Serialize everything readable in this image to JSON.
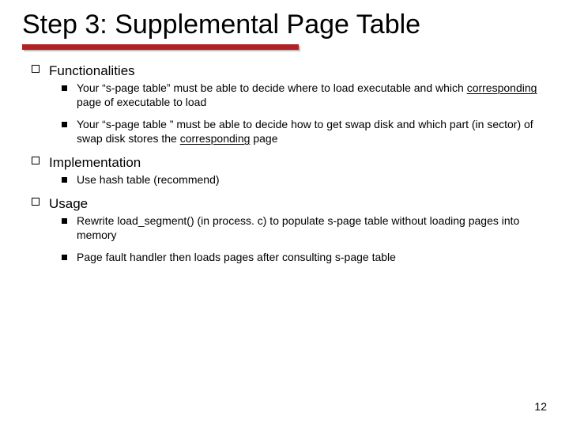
{
  "title": "Step 3: Supplemental Page Table",
  "rule": {
    "color": "#b22222",
    "shadow": "#c0c0c0"
  },
  "page_number": "12",
  "sections": [
    {
      "heading": "Functionalities",
      "items": [
        {
          "segments": [
            {
              "text": "Your “s-page table” must be able to decide where to load executable and which "
            },
            {
              "text": "corresponding",
              "style": "underline"
            },
            {
              "text": " page of executable to load"
            }
          ]
        },
        {
          "segments": [
            {
              "text": "Your “s-page table ” must be able to decide how to get swap disk and which part (in sector) of swap disk stores the "
            },
            {
              "text": "corresponding",
              "style": "underline"
            },
            {
              "text": " page"
            }
          ]
        }
      ]
    },
    {
      "heading": "Implementation",
      "items": [
        {
          "segments": [
            {
              "text": "Use hash table (recommend)"
            }
          ]
        }
      ]
    },
    {
      "heading": "Usage",
      "items": [
        {
          "segments": [
            {
              "text": "Rewrite load_segment() (in process. c) to populate s-page table without loading pages into memory"
            }
          ]
        },
        {
          "segments": [
            {
              "text": "Page fault handler then loads pages after consulting s-page table"
            }
          ]
        }
      ]
    }
  ]
}
